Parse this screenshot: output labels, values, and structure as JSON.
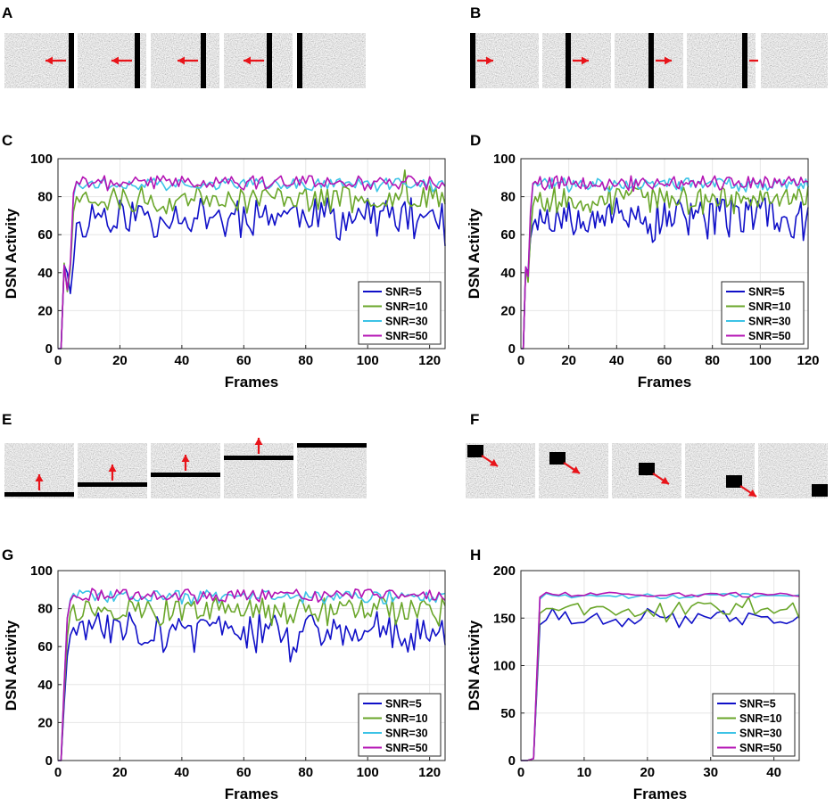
{
  "figure": {
    "panel_labels": [
      "A",
      "B",
      "C",
      "D",
      "E",
      "F",
      "G",
      "H"
    ],
    "stimulus_colors": {
      "noise_bg": "#c9c9c9",
      "bar": "#000000",
      "arrow": "#e8141a"
    },
    "stimuli": [
      {
        "panel": "A",
        "motion": "left",
        "shape": "vertical-bar",
        "frames": 5
      },
      {
        "panel": "B",
        "motion": "right",
        "shape": "vertical-bar",
        "frames": 5
      },
      {
        "panel": "E",
        "motion": "up",
        "shape": "horizontal-bar",
        "frames": 5
      },
      {
        "panel": "F",
        "motion": "down-right",
        "shape": "square",
        "frames": 5
      }
    ]
  },
  "chart_data": [
    {
      "panel": "C",
      "type": "line",
      "xlabel": "Frames",
      "ylabel": "DSN Activity",
      "xlim": [
        0,
        125
      ],
      "ylim": [
        0,
        100
      ],
      "xticks": [
        0,
        20,
        40,
        60,
        80,
        100,
        120
      ],
      "yticks": [
        0,
        20,
        40,
        60,
        80,
        100
      ],
      "grid": true,
      "legend_position": "bottom-right",
      "series": [
        {
          "name": "SNR=5",
          "color": "#1010c8",
          "ramp": [
            [
              0,
              0
            ],
            [
              1,
              0
            ],
            [
              2,
              44
            ],
            [
              3,
              40
            ],
            [
              4,
              29
            ],
            [
              5,
              45
            ],
            [
              6,
              66
            ]
          ],
          "mean": 71,
          "amp": 6,
          "seed": 11,
          "x_end": 125,
          "dips": [
            [
              115,
              58
            ],
            [
              125,
              54
            ]
          ]
        },
        {
          "name": "SNR=10",
          "color": "#6aa62a",
          "ramp": [
            [
              0,
              0
            ],
            [
              1,
              0
            ],
            [
              2,
              45
            ],
            [
              3,
              30
            ],
            [
              4,
              42
            ],
            [
              5,
              72
            ],
            [
              6,
              80
            ]
          ],
          "mean": 80,
          "amp": 4,
          "seed": 23,
          "x_end": 125,
          "dips": [
            [
              112,
              94
            ]
          ]
        },
        {
          "name": "SNR=30",
          "color": "#3cc3e6",
          "ramp": [
            [
              0,
              0
            ],
            [
              1,
              0
            ],
            [
              2,
              44
            ],
            [
              3,
              32
            ],
            [
              4,
              44
            ],
            [
              5,
              80
            ],
            [
              6,
              88
            ]
          ],
          "mean": 87,
          "amp": 2,
          "seed": 37,
          "x_end": 125,
          "dips": []
        },
        {
          "name": "SNR=50",
          "color": "#b414b4",
          "ramp": [
            [
              0,
              0
            ],
            [
              1,
              0
            ],
            [
              2,
              44
            ],
            [
              3,
              31
            ],
            [
              4,
              45
            ],
            [
              5,
              82
            ],
            [
              6,
              88
            ]
          ],
          "mean": 88,
          "amp": 2.2,
          "seed": 41,
          "x_end": 125,
          "dips": []
        }
      ]
    },
    {
      "panel": "D",
      "type": "line",
      "xlabel": "Frames",
      "ylabel": "DSN Activity",
      "xlim": [
        0,
        120
      ],
      "ylim": [
        0,
        100
      ],
      "xticks": [
        0,
        20,
        40,
        60,
        80,
        100,
        120
      ],
      "yticks": [
        0,
        20,
        40,
        60,
        80,
        100
      ],
      "grid": true,
      "legend_position": "bottom-right",
      "series": [
        {
          "name": "SNR=5",
          "color": "#1010c8",
          "ramp": [
            [
              0,
              0
            ],
            [
              1,
              0
            ],
            [
              2,
              43
            ],
            [
              3,
              40
            ],
            [
              4,
              58
            ],
            [
              5,
              65
            ],
            [
              6,
              68
            ]
          ],
          "mean": 71,
          "amp": 6,
          "seed": 53,
          "x_end": 120,
          "dips": [
            [
              55,
              56
            ],
            [
              118,
              57
            ]
          ]
        },
        {
          "name": "SNR=10",
          "color": "#6aa62a",
          "ramp": [
            [
              0,
              0
            ],
            [
              1,
              0
            ],
            [
              2,
              43
            ],
            [
              3,
              35
            ],
            [
              4,
              60
            ],
            [
              5,
              75
            ],
            [
              6,
              80
            ]
          ],
          "mean": 80,
          "amp": 4,
          "seed": 67,
          "x_end": 120,
          "dips": []
        },
        {
          "name": "SNR=30",
          "color": "#3cc3e6",
          "ramp": [
            [
              0,
              0
            ],
            [
              1,
              0
            ],
            [
              2,
              43
            ],
            [
              3,
              38
            ],
            [
              4,
              70
            ],
            [
              5,
              86
            ],
            [
              6,
              88
            ]
          ],
          "mean": 87,
          "amp": 2,
          "seed": 71,
          "x_end": 120,
          "dips": []
        },
        {
          "name": "SNR=50",
          "color": "#b414b4",
          "ramp": [
            [
              0,
              0
            ],
            [
              1,
              0
            ],
            [
              2,
              43
            ],
            [
              3,
              38
            ],
            [
              4,
              72
            ],
            [
              5,
              87
            ],
            [
              6,
              88
            ]
          ],
          "mean": 88,
          "amp": 2.2,
          "seed": 79,
          "x_end": 120,
          "dips": []
        }
      ]
    },
    {
      "panel": "G",
      "type": "line",
      "xlabel": "Frames",
      "ylabel": "DSN Activity",
      "xlim": [
        0,
        125
      ],
      "ylim": [
        0,
        100
      ],
      "xticks": [
        0,
        20,
        40,
        60,
        80,
        100,
        120
      ],
      "yticks": [
        0,
        20,
        40,
        60,
        80,
        100
      ],
      "grid": true,
      "legend_position": "bottom-right",
      "series": [
        {
          "name": "SNR=5",
          "color": "#1010c8",
          "ramp": [
            [
              0,
              0
            ],
            [
              1,
              0
            ],
            [
              2,
              30
            ],
            [
              3,
              55
            ],
            [
              4,
              66
            ],
            [
              5,
              70
            ]
          ],
          "mean": 70,
          "amp": 6,
          "seed": 83,
          "x_end": 125,
          "dips": [
            [
              75,
              52
            ]
          ]
        },
        {
          "name": "SNR=10",
          "color": "#6aa62a",
          "ramp": [
            [
              0,
              0
            ],
            [
              1,
              0
            ],
            [
              2,
              35
            ],
            [
              3,
              65
            ],
            [
              4,
              78
            ],
            [
              5,
              82
            ]
          ],
          "mean": 80,
          "amp": 4,
          "seed": 97,
          "x_end": 125,
          "dips": []
        },
        {
          "name": "SNR=30",
          "color": "#3cc3e6",
          "ramp": [
            [
              0,
              0
            ],
            [
              1,
              0
            ],
            [
              2,
              40
            ],
            [
              3,
              75
            ],
            [
              4,
              85
            ],
            [
              5,
              88
            ]
          ],
          "mean": 87,
          "amp": 2,
          "seed": 101,
          "x_end": 125,
          "dips": []
        },
        {
          "name": "SNR=50",
          "color": "#b414b4",
          "ramp": [
            [
              0,
              0
            ],
            [
              1,
              0
            ],
            [
              2,
              40
            ],
            [
              3,
              75
            ],
            [
              4,
              84
            ],
            [
              5,
              87
            ]
          ],
          "mean": 87.5,
          "amp": 2.2,
          "seed": 113,
          "x_end": 125,
          "dips": []
        }
      ]
    },
    {
      "panel": "H",
      "type": "line",
      "xlabel": "Frames",
      "ylabel": "DSN Activity",
      "xlim": [
        0,
        44
      ],
      "ylim": [
        0,
        200
      ],
      "xticks": [
        0,
        10,
        20,
        30,
        40
      ],
      "yticks": [
        0,
        50,
        100,
        150,
        200
      ],
      "grid": true,
      "legend_position": "bottom-right",
      "series": [
        {
          "name": "SNR=5",
          "color": "#1010c8",
          "ramp": [
            [
              0,
              0
            ],
            [
              1,
              0
            ],
            [
              2,
              2
            ],
            [
              3,
              143
            ],
            [
              4,
              148
            ],
            [
              5,
              160
            ]
          ],
          "mean": 152,
          "amp": 6,
          "seed": 127,
          "x_end": 44,
          "dips": [
            [
              24,
              155
            ],
            [
              43,
              147
            ]
          ]
        },
        {
          "name": "SNR=10",
          "color": "#6aa62a",
          "ramp": [
            [
              0,
              0
            ],
            [
              1,
              0
            ],
            [
              2,
              2
            ],
            [
              3,
              155
            ],
            [
              4,
              160
            ],
            [
              5,
              160
            ]
          ],
          "mean": 161,
          "amp": 5,
          "seed": 131,
          "x_end": 44,
          "dips": [
            [
              23,
              146
            ],
            [
              36,
              172
            ]
          ]
        },
        {
          "name": "SNR=30",
          "color": "#3cc3e6",
          "ramp": [
            [
              0,
              0
            ],
            [
              1,
              0
            ],
            [
              2,
              2
            ],
            [
              3,
              170
            ],
            [
              4,
              176
            ],
            [
              5,
              174
            ]
          ],
          "mean": 174,
          "amp": 1.5,
          "seed": 137,
          "x_end": 44,
          "dips": []
        },
        {
          "name": "SNR=50",
          "color": "#b414b4",
          "ramp": [
            [
              0,
              0
            ],
            [
              1,
              0
            ],
            [
              2,
              2
            ],
            [
              3,
              172
            ],
            [
              4,
              177
            ],
            [
              5,
              175
            ]
          ],
          "mean": 175,
          "amp": 1.5,
          "seed": 139,
          "x_end": 44,
          "dips": []
        }
      ]
    }
  ]
}
